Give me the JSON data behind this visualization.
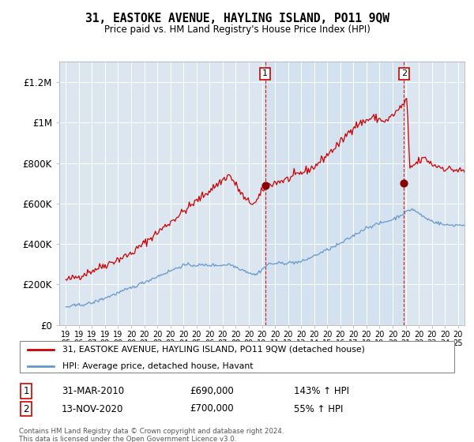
{
  "title": "31, EASTOKE AVENUE, HAYLING ISLAND, PO11 9QW",
  "subtitle": "Price paid vs. HM Land Registry's House Price Index (HPI)",
  "legend_line1": "31, EASTOKE AVENUE, HAYLING ISLAND, PO11 9QW (detached house)",
  "legend_line2": "HPI: Average price, detached house, Havant",
  "transaction1_date": "31-MAR-2010",
  "transaction1_price": "£690,000",
  "transaction1_hpi": "143% ↑ HPI",
  "transaction1_year": 2010.25,
  "transaction1_value": 690000,
  "transaction2_date": "13-NOV-2020",
  "transaction2_price": "£700,000",
  "transaction2_hpi": "55% ↑ HPI",
  "transaction2_year": 2020.87,
  "transaction2_value": 700000,
  "footer": "Contains HM Land Registry data © Crown copyright and database right 2024.\nThis data is licensed under the Open Government Licence v3.0.",
  "plot_bg_color": "#dce6f0",
  "shade_color": "#dce8f5",
  "fig_bg_color": "#ffffff",
  "red_color": "#cc0000",
  "blue_color": "#6699cc",
  "ylim": [
    0,
    1300000
  ],
  "xlim_start": 1994.5,
  "xlim_end": 2025.5
}
